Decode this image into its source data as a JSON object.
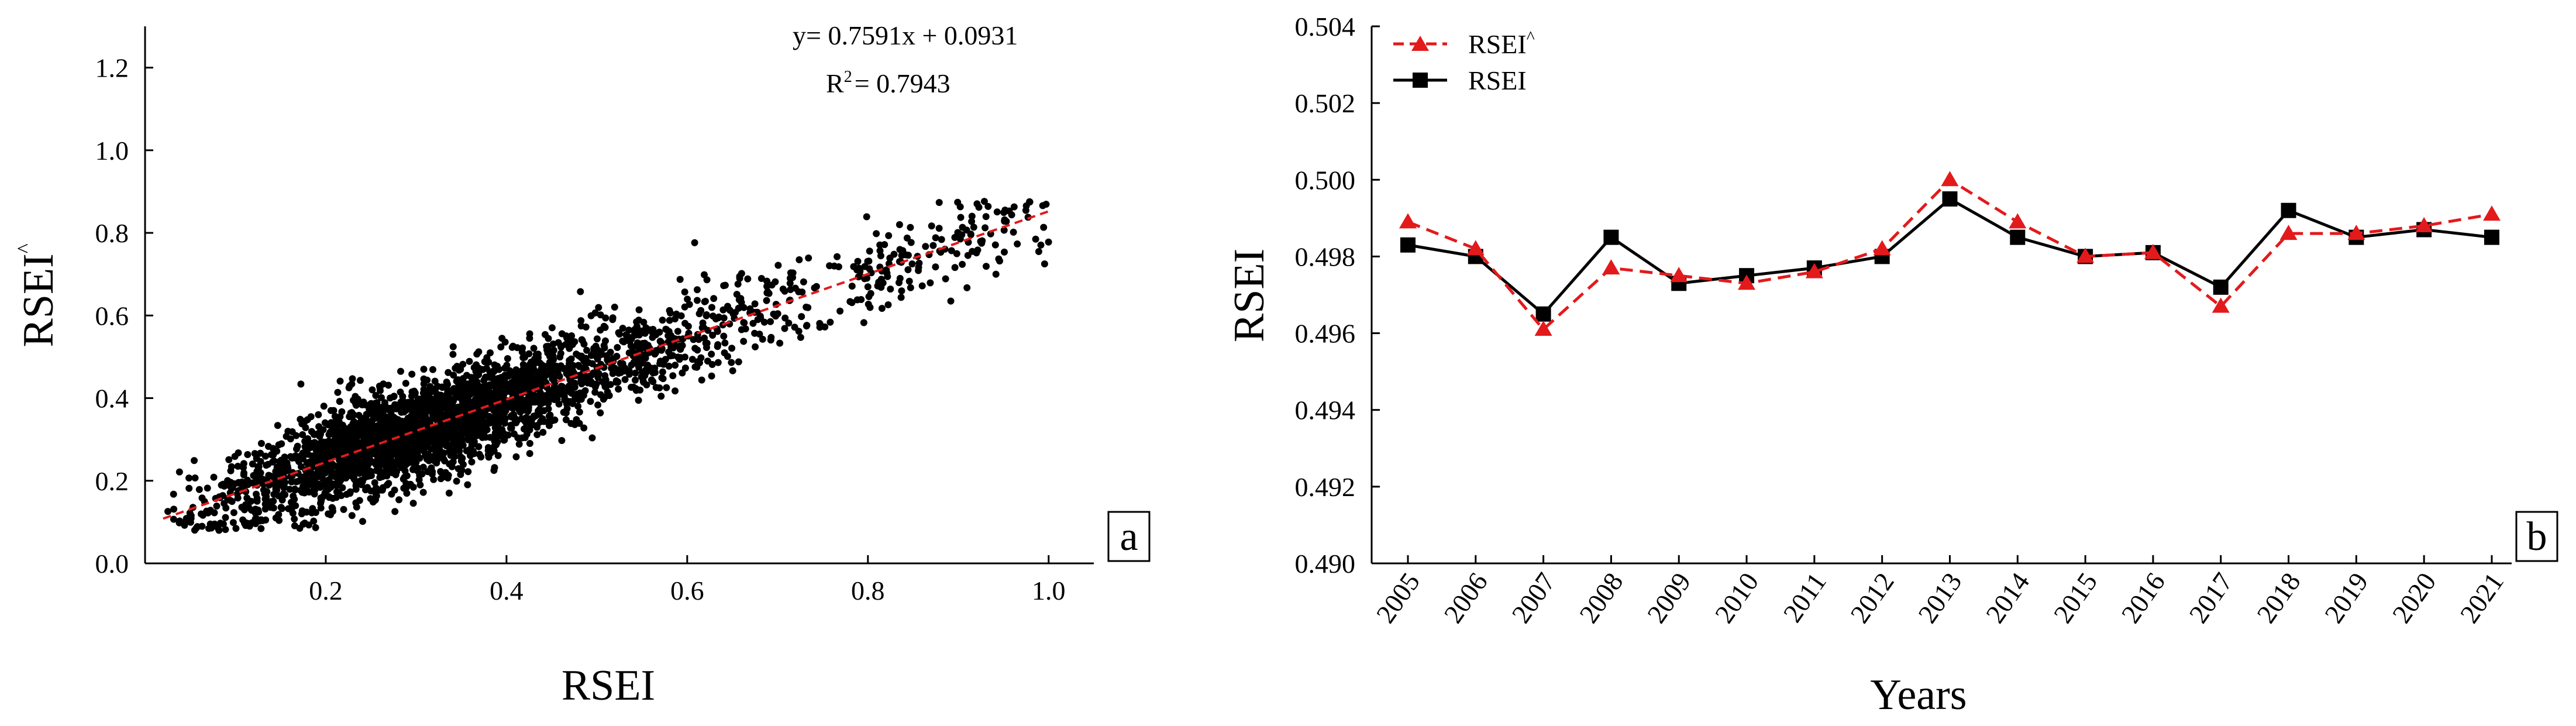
{
  "chart_data": [
    {
      "id": "a",
      "type": "scatter",
      "panel_label": "a",
      "xlabel": "RSEI",
      "ylabel": "RSEI^",
      "ylabel_main": "RSEI",
      "ylabel_sup": "^",
      "xlim": [
        0.0,
        1.05
      ],
      "ylim": [
        0.0,
        1.3
      ],
      "x_ticks": [
        0.2,
        0.4,
        0.6,
        0.8,
        1.0
      ],
      "x_tick_labels": [
        "0.2",
        "0.4",
        "0.6",
        "0.8",
        "1.0"
      ],
      "y_ticks": [
        0.0,
        0.2,
        0.4,
        0.6,
        0.8,
        1.0,
        1.2
      ],
      "y_tick_labels": [
        "0.0",
        "0.2",
        "0.4",
        "0.6",
        "0.8",
        "1.0",
        "1.2"
      ],
      "fit_line": {
        "slope": 0.7591,
        "intercept": 0.0931,
        "x_range": [
          0.02,
          1.0
        ],
        "color": "#e31a1c",
        "style": "dashed"
      },
      "equation": "y= 0.7591x + 0.0931",
      "r2_main": "R",
      "r2_sup": "2",
      "r2_value": "= 0.7943",
      "point_color": "#000000",
      "point_count_approx": 3000,
      "points_summary": "dense cloud around fit line; x from about 0.02 to 1.0, y from about 0.08 to 0.88; densest near x 0.2-0.4, y 0.2-0.4"
    },
    {
      "id": "b",
      "type": "line",
      "panel_label": "b",
      "xlabel": "Years",
      "ylabel": "RSEI",
      "ylim": [
        0.49,
        0.504
      ],
      "y_ticks": [
        0.49,
        0.492,
        0.494,
        0.496,
        0.498,
        0.5,
        0.502,
        0.504
      ],
      "y_tick_labels": [
        "0.490",
        "0.492",
        "0.494",
        "0.496",
        "0.498",
        "0.500",
        "0.502",
        "0.504"
      ],
      "categories": [
        "2005",
        "2006",
        "2007",
        "2008",
        "2009",
        "2010",
        "2011",
        "2012",
        "2013",
        "2014",
        "2015",
        "2016",
        "2017",
        "2018",
        "2019",
        "2020",
        "2021"
      ],
      "series": [
        {
          "name": "RSEI^",
          "legend_main": "RSEI",
          "legend_sup": "^",
          "color": "#e31a1c",
          "marker": "triangle",
          "style": "dashed",
          "values": [
            0.4989,
            0.4982,
            0.4961,
            0.4977,
            0.4975,
            0.4973,
            0.4976,
            0.4982,
            0.5,
            0.4989,
            0.498,
            0.4981,
            0.4967,
            0.4986,
            0.4986,
            0.4988,
            0.4991
          ]
        },
        {
          "name": "RSEI",
          "legend_main": "RSEI",
          "legend_sup": "",
          "color": "#000000",
          "marker": "square",
          "style": "solid",
          "values": [
            0.4983,
            0.498,
            0.4965,
            0.4985,
            0.4973,
            0.4975,
            0.4977,
            0.498,
            0.4995,
            0.4985,
            0.498,
            0.4981,
            0.4972,
            0.4992,
            0.4985,
            0.4987,
            0.4985
          ]
        }
      ]
    }
  ]
}
